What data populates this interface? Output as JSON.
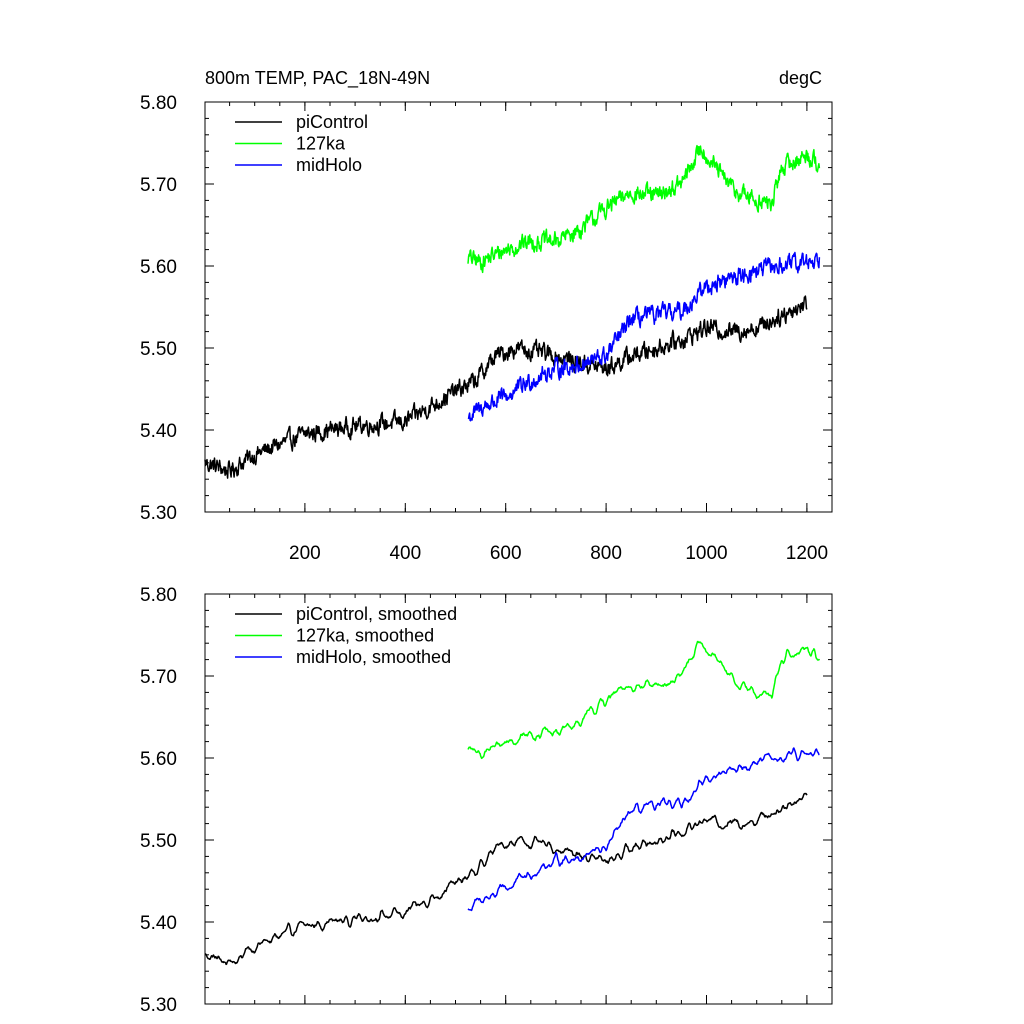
{
  "chart_data": [
    {
      "type": "line",
      "title_left": "800m TEMP, PAC_18N-49N",
      "title_right": "degC",
      "xlim": [
        1,
        1250
      ],
      "ylim": [
        5.3,
        5.8
      ],
      "xticks": [
        200,
        400,
        600,
        800,
        1000,
        1200
      ],
      "xtick_labels": [
        "200",
        "400",
        "600",
        "800",
        "1000",
        "1200"
      ],
      "yticks": [
        5.3,
        5.4,
        5.5,
        5.6,
        5.7,
        5.8
      ],
      "ytick_labels": [
        "5.30",
        "5.40",
        "5.50",
        "5.60",
        "5.70",
        "5.80"
      ],
      "legend_position": "top-left",
      "smoothed": false,
      "series": [
        {
          "name": "piControl",
          "color": "#000000",
          "x_start": 1,
          "x_end": 1200,
          "anchors_x": [
            1,
            50,
            100,
            200,
            300,
            400,
            480,
            540,
            580,
            620,
            700,
            760,
            800,
            850,
            900,
            950,
            1000,
            1050,
            1100,
            1150,
            1200
          ],
          "anchors_y": [
            5.36,
            5.35,
            5.37,
            5.395,
            5.405,
            5.41,
            5.44,
            5.46,
            5.49,
            5.5,
            5.49,
            5.48,
            5.475,
            5.49,
            5.5,
            5.51,
            5.525,
            5.52,
            5.525,
            5.54,
            5.555
          ],
          "noise": 0.016
        },
        {
          "name": "127ka",
          "color": "#00ff00",
          "x_start": 525,
          "x_end": 1225,
          "anchors_x": [
            525,
            550,
            600,
            650,
            700,
            750,
            800,
            850,
            900,
            950,
            990,
            1000,
            1030,
            1060,
            1100,
            1130,
            1150,
            1200,
            1225
          ],
          "anchors_y": [
            5.61,
            5.605,
            5.62,
            5.63,
            5.63,
            5.645,
            5.67,
            5.69,
            5.685,
            5.7,
            5.745,
            5.735,
            5.71,
            5.69,
            5.68,
            5.675,
            5.72,
            5.735,
            5.725
          ],
          "noise": 0.016
        },
        {
          "name": "midHolo",
          "color": "#0000ff",
          "x_start": 525,
          "x_end": 1225,
          "anchors_x": [
            525,
            560,
            600,
            650,
            700,
            750,
            800,
            850,
            900,
            950,
            1000,
            1050,
            1100,
            1150,
            1200,
            1225
          ],
          "anchors_y": [
            5.415,
            5.43,
            5.44,
            5.46,
            5.475,
            5.48,
            5.49,
            5.535,
            5.54,
            5.545,
            5.575,
            5.585,
            5.595,
            5.6,
            5.605,
            5.61
          ],
          "noise": 0.016
        }
      ]
    },
    {
      "type": "line",
      "xlim": [
        1,
        1250
      ],
      "ylim": [
        5.3,
        5.8
      ],
      "xticks": [
        200,
        400,
        600,
        800,
        1000,
        1200
      ],
      "yticks": [
        5.3,
        5.4,
        5.5,
        5.6,
        5.7,
        5.8
      ],
      "ytick_labels": [
        "5.30",
        "5.40",
        "5.50",
        "5.60",
        "5.70",
        "5.80"
      ],
      "legend_position": "top-left",
      "smoothed": true,
      "series": [
        {
          "name": "piControl, smoothed",
          "color": "#000000",
          "x_start": 1,
          "x_end": 1200,
          "anchors_x": [
            1,
            50,
            100,
            200,
            300,
            400,
            480,
            540,
            580,
            620,
            700,
            760,
            800,
            850,
            900,
            950,
            1000,
            1050,
            1100,
            1150,
            1200
          ],
          "anchors_y": [
            5.36,
            5.35,
            5.37,
            5.395,
            5.405,
            5.41,
            5.44,
            5.46,
            5.49,
            5.5,
            5.49,
            5.48,
            5.475,
            5.49,
            5.5,
            5.51,
            5.525,
            5.52,
            5.525,
            5.54,
            5.555
          ],
          "noise": 0.008
        },
        {
          "name": "127ka, smoothed",
          "color": "#00ff00",
          "x_start": 525,
          "x_end": 1225,
          "anchors_x": [
            525,
            550,
            600,
            650,
            700,
            750,
            800,
            850,
            900,
            950,
            990,
            1000,
            1030,
            1060,
            1100,
            1130,
            1150,
            1200,
            1225
          ],
          "anchors_y": [
            5.61,
            5.605,
            5.62,
            5.63,
            5.63,
            5.645,
            5.67,
            5.69,
            5.685,
            5.7,
            5.745,
            5.735,
            5.71,
            5.69,
            5.68,
            5.675,
            5.72,
            5.735,
            5.725
          ],
          "noise": 0.008
        },
        {
          "name": "midHolo, smoothed",
          "color": "#0000ff",
          "x_start": 525,
          "x_end": 1225,
          "anchors_x": [
            525,
            560,
            600,
            650,
            700,
            750,
            800,
            850,
            900,
            950,
            1000,
            1050,
            1100,
            1150,
            1200,
            1225
          ],
          "anchors_y": [
            5.415,
            5.43,
            5.44,
            5.46,
            5.475,
            5.48,
            5.49,
            5.535,
            5.54,
            5.545,
            5.575,
            5.585,
            5.595,
            5.6,
            5.605,
            5.61
          ],
          "noise": 0.008
        }
      ]
    }
  ]
}
